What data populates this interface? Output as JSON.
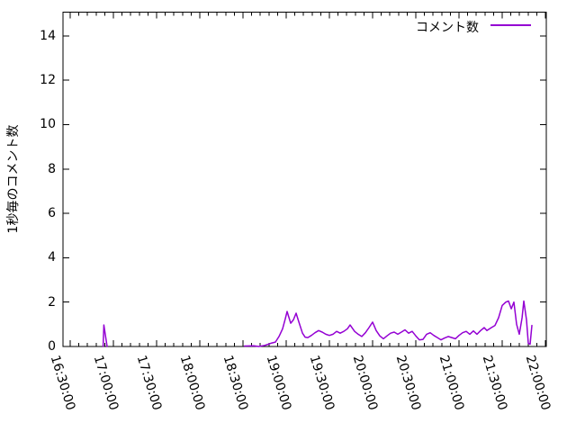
{
  "chart_data": {
    "type": "line",
    "title": "",
    "xlabel": "",
    "ylabel": "1秒毎のコメント数",
    "background_color": "#ffffff",
    "axis_color": "#000000",
    "text_color": "#000000",
    "grid": false,
    "legend": {
      "position": "inside-top-right",
      "entries": [
        "コメント数"
      ]
    },
    "x_axis": {
      "tick_labels": [
        "16:30:00",
        "17:00:00",
        "17:30:00",
        "18:00:00",
        "18:30:00",
        "19:00:00",
        "19:30:00",
        "20:00:00",
        "20:30:00",
        "21:00:00",
        "21:30:00",
        "22:00:00"
      ],
      "tick_minutes": [
        990,
        1020,
        1050,
        1080,
        1110,
        1140,
        1170,
        1200,
        1230,
        1260,
        1290,
        1320
      ],
      "domain_minutes": [
        985,
        1320.63
      ],
      "minor_tick_step_minutes": 6
    },
    "y_axis": {
      "tick_labels": [
        "0",
        "2",
        "4",
        "6",
        "8",
        "10",
        "12",
        "14"
      ],
      "ticks": [
        0,
        2,
        4,
        6,
        8,
        10,
        12,
        14
      ],
      "range": [
        0,
        15.07
      ]
    },
    "series": [
      {
        "name": "コメント数",
        "color": "#9400D3",
        "line_width": 1.5,
        "segments": [
          [
            [
              1012.9,
              0
            ],
            [
              1013.4,
              0.97
            ],
            [
              1015.6,
              0
            ]
          ],
          [
            [
              1111,
              0.02
            ],
            [
              1117.5,
              0.03
            ],
            [
              1121,
              0
            ],
            [
              1125,
              0.05
            ],
            [
              1127.5,
              0.1
            ],
            [
              1130,
              0.16
            ],
            [
              1132.5,
              0.2
            ],
            [
              1135,
              0.45
            ],
            [
              1137.5,
              0.8
            ],
            [
              1139.4,
              1.25
            ],
            [
              1140.6,
              1.58
            ],
            [
              1143.1,
              1.05
            ],
            [
              1145,
              1.2
            ],
            [
              1146.9,
              1.5
            ],
            [
              1148.8,
              1.1
            ],
            [
              1151.3,
              0.6
            ],
            [
              1153.1,
              0.42
            ],
            [
              1155,
              0.4
            ],
            [
              1157.5,
              0.5
            ],
            [
              1160,
              0.62
            ],
            [
              1162.5,
              0.72
            ],
            [
              1165,
              0.65
            ],
            [
              1167.5,
              0.55
            ],
            [
              1170,
              0.5
            ],
            [
              1172.5,
              0.55
            ],
            [
              1175,
              0.68
            ],
            [
              1177.5,
              0.6
            ],
            [
              1180,
              0.68
            ],
            [
              1182.5,
              0.8
            ],
            [
              1184.4,
              0.97
            ],
            [
              1187.5,
              0.68
            ],
            [
              1190,
              0.55
            ],
            [
              1192.5,
              0.45
            ],
            [
              1195,
              0.62
            ],
            [
              1197.5,
              0.85
            ],
            [
              1200,
              1.1
            ],
            [
              1202.5,
              0.72
            ],
            [
              1205,
              0.48
            ],
            [
              1207.5,
              0.35
            ],
            [
              1210,
              0.48
            ],
            [
              1212.5,
              0.6
            ],
            [
              1215,
              0.65
            ],
            [
              1217.5,
              0.55
            ],
            [
              1220,
              0.65
            ],
            [
              1222.5,
              0.75
            ],
            [
              1225,
              0.6
            ],
            [
              1227.5,
              0.68
            ],
            [
              1230,
              0.48
            ],
            [
              1232.5,
              0.3
            ],
            [
              1235,
              0.32
            ],
            [
              1237.5,
              0.55
            ],
            [
              1240,
              0.62
            ],
            [
              1242.5,
              0.5
            ],
            [
              1245,
              0.4
            ],
            [
              1247.5,
              0.3
            ],
            [
              1250,
              0.38
            ],
            [
              1252.5,
              0.45
            ],
            [
              1255,
              0.4
            ],
            [
              1257.5,
              0.35
            ],
            [
              1260,
              0.5
            ],
            [
              1262.5,
              0.62
            ],
            [
              1265,
              0.68
            ],
            [
              1267.5,
              0.55
            ],
            [
              1270,
              0.7
            ],
            [
              1272.5,
              0.55
            ],
            [
              1275,
              0.72
            ],
            [
              1277.5,
              0.85
            ],
            [
              1279.4,
              0.72
            ],
            [
              1282.5,
              0.85
            ],
            [
              1285,
              0.95
            ],
            [
              1287.5,
              1.3
            ],
            [
              1290,
              1.85
            ],
            [
              1292.5,
              2.0
            ],
            [
              1294.4,
              2.05
            ],
            [
              1296.3,
              1.7
            ],
            [
              1298.1,
              2.0
            ],
            [
              1300,
              1.0
            ],
            [
              1301.9,
              0.55
            ],
            [
              1303.8,
              1.3
            ],
            [
              1305,
              2.05
            ],
            [
              1306.9,
              1.2
            ],
            [
              1308.1,
              0.15
            ],
            [
              1309.4,
              0.1
            ],
            [
              1310.6,
              0.95
            ]
          ]
        ]
      }
    ]
  }
}
